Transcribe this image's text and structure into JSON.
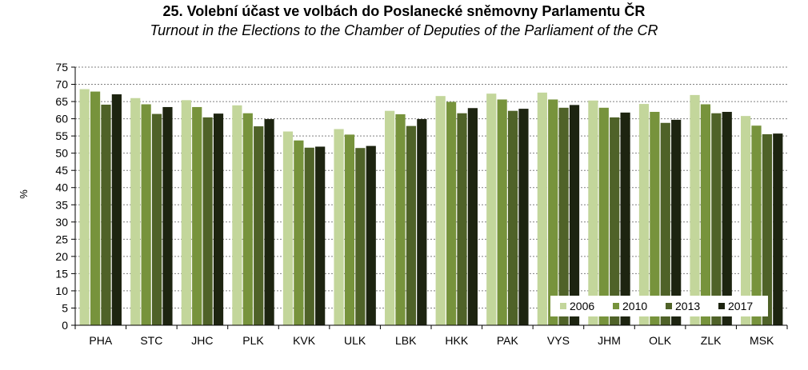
{
  "chart_data": {
    "type": "bar",
    "title": "25. Volební účast ve volbách do Poslanecké sněmovny Parlamentu ČR",
    "subtitle": "Turnout in the Elections to the Chamber of Deputies of the Parliament of the CR",
    "xlabel": "",
    "ylabel": "%",
    "ylim": [
      0,
      75
    ],
    "yticks": [
      0,
      5,
      10,
      15,
      20,
      25,
      30,
      35,
      40,
      45,
      50,
      55,
      60,
      65,
      70,
      75
    ],
    "grid": true,
    "legend_position": "bottom-right",
    "categories": [
      "PHA",
      "STC",
      "JHC",
      "PLK",
      "KVK",
      "ULK",
      "LBK",
      "HKK",
      "PAK",
      "VYS",
      "JHM",
      "OLK",
      "ZLK",
      "MSK"
    ],
    "series": [
      {
        "name": "2006",
        "color": "#c3d69b",
        "values": [
          68.6,
          66.0,
          65.4,
          63.9,
          56.3,
          57.0,
          62.3,
          66.6,
          67.3,
          67.6,
          65.3,
          64.3,
          66.9,
          60.8
        ]
      },
      {
        "name": "2010",
        "color": "#77933c",
        "values": [
          67.9,
          64.2,
          63.4,
          61.6,
          53.7,
          55.4,
          61.3,
          64.9,
          65.6,
          65.6,
          63.2,
          62.0,
          64.2,
          58.0
        ]
      },
      {
        "name": "2013",
        "color": "#4f6228",
        "values": [
          64.1,
          61.4,
          60.4,
          57.8,
          51.6,
          51.5,
          57.9,
          61.6,
          62.3,
          63.2,
          60.4,
          58.8,
          61.6,
          55.5
        ]
      },
      {
        "name": "2017",
        "color": "#1d2410",
        "values": [
          67.1,
          63.4,
          61.5,
          59.9,
          51.9,
          52.1,
          59.9,
          63.1,
          62.9,
          64.0,
          61.8,
          59.7,
          62.0,
          55.7
        ]
      }
    ]
  }
}
